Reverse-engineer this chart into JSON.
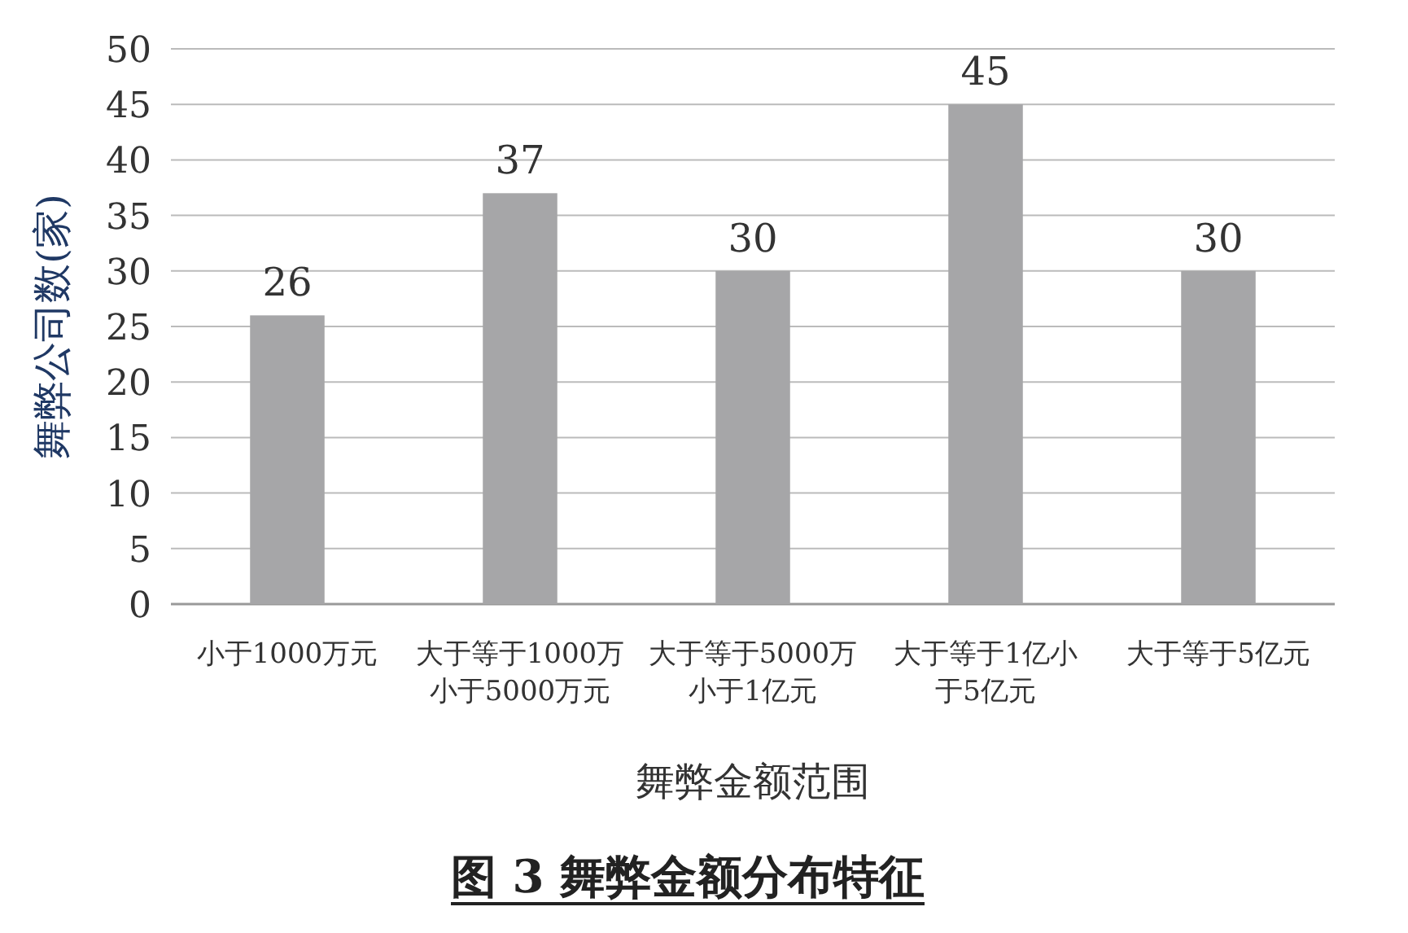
{
  "chart_data": {
    "type": "bar",
    "title": "图 3  舞弊金额分布特征",
    "xlabel": "舞弊金额范围",
    "ylabel": "舞弊公司数(家)",
    "categories": [
      "小于1000万元",
      "大于等于1000万小于5000万元",
      "大于等于5000万小于1亿元",
      "大于等于1亿小于5亿元",
      "大于等于5亿元"
    ],
    "values": [
      26,
      37,
      30,
      45,
      30
    ],
    "color": "#a6a6a8",
    "ylim": [
      0,
      50
    ],
    "yticks": [
      0,
      5,
      10,
      15,
      20,
      25,
      30,
      35,
      40,
      45,
      50
    ],
    "grid": "y",
    "data_labels": true
  }
}
